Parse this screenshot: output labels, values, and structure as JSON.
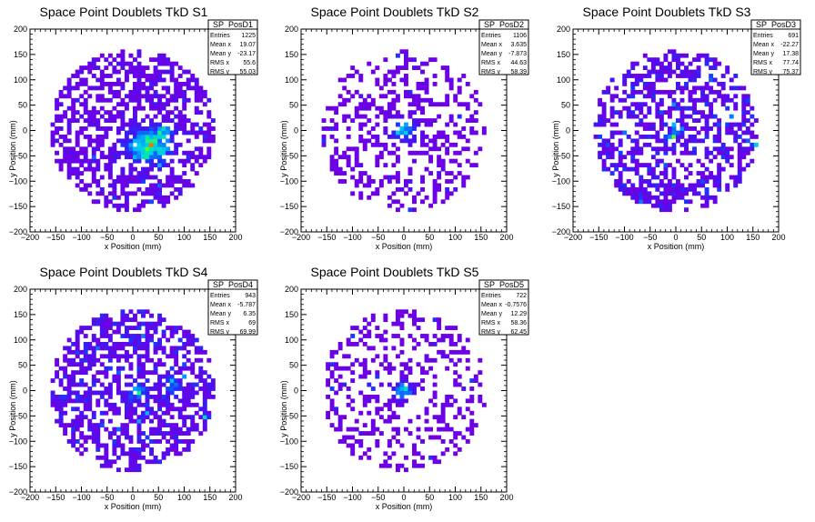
{
  "chart_data": [
    {
      "type": "heatmap",
      "title": "Space Point Doublets TkD S1",
      "xlabel": "x Position (mm)",
      "ylabel": "y Position (mm)",
      "xlim": [
        -200,
        200
      ],
      "ylim": [
        -200,
        200
      ],
      "xticks": [
        "−200",
        "−150",
        "−100",
        "−50",
        "0",
        "50",
        "100",
        "150",
        "200"
      ],
      "yticks": [
        "200",
        "150",
        "100",
        "50",
        "0",
        "−50",
        "−100",
        "−150",
        "−200"
      ],
      "stats": {
        "name": "SP_PosD1",
        "rows": [
          {
            "label": "Entries",
            "value": "1225"
          },
          {
            "label": "Mean x",
            "value": "19.07"
          },
          {
            "label": "Mean y",
            "value": "-23.17"
          },
          {
            "label": "RMS x",
            "value": "55.6"
          },
          {
            "label": "RMS y",
            "value": "55.03"
          }
        ]
      },
      "hotspots": [
        {
          "x": 30,
          "y": -30,
          "sx": 30,
          "sy": 22,
          "w": 1.0
        },
        {
          "x": 60,
          "y": 0,
          "sx": 12,
          "sy": 10,
          "w": 0.5
        }
      ],
      "occupancy": 0.55,
      "bg_intensity": 0.12,
      "peak_intensity": 0.8,
      "seed": 11
    },
    {
      "type": "heatmap",
      "title": "Space Point Doublets TkD S2",
      "xlabel": "x Position (mm)",
      "ylabel": "y Position (mm)",
      "xlim": [
        -200,
        200
      ],
      "ylim": [
        -200,
        200
      ],
      "xticks": [
        "−200",
        "−150",
        "−100",
        "−50",
        "0",
        "50",
        "100",
        "150",
        "200"
      ],
      "yticks": [
        "200",
        "150",
        "100",
        "50",
        "0",
        "−50",
        "−100",
        "−150",
        "−200"
      ],
      "stats": {
        "name": "SP_PosD2",
        "rows": [
          {
            "label": "Entries",
            "value": "1106"
          },
          {
            "label": "Mean x",
            "value": "3.635"
          },
          {
            "label": "Mean y",
            "value": "-7.873"
          },
          {
            "label": "RMS x",
            "value": "44.63"
          },
          {
            "label": "RMS y",
            "value": "58.39"
          }
        ]
      },
      "hotspots": [
        {
          "x": 0,
          "y": 0,
          "sx": 18,
          "sy": 15,
          "w": 1.0
        }
      ],
      "occupancy": 0.3,
      "bg_intensity": 0.02,
      "peak_intensity": 0.65,
      "seed": 23
    },
    {
      "type": "heatmap",
      "title": "Space Point Doublets TkD S3",
      "xlabel": "x Position (mm)",
      "ylabel": "y Position (mm)",
      "xlim": [
        -200,
        200
      ],
      "ylim": [
        -200,
        200
      ],
      "xticks": [
        "−200",
        "−150",
        "−100",
        "−50",
        "0",
        "50",
        "100",
        "150",
        "200"
      ],
      "yticks": [
        "200",
        "150",
        "100",
        "50",
        "0",
        "−50",
        "−100",
        "−150",
        "−200"
      ],
      "stats": {
        "name": "SP_PosD3",
        "rows": [
          {
            "label": "Entries",
            "value": "691"
          },
          {
            "label": "Mean x",
            "value": "-22.27"
          },
          {
            "label": "Mean y",
            "value": "17.38"
          },
          {
            "label": "RMS x",
            "value": "77.74"
          },
          {
            "label": "RMS y",
            "value": "75.37"
          }
        ]
      },
      "hotspots": [
        {
          "x": 0,
          "y": 0,
          "sx": 10,
          "sy": 10,
          "w": 0.6
        }
      ],
      "occupancy": 0.5,
      "bg_intensity": 0.25,
      "peak_intensity": 0.7,
      "seed": 37
    },
    {
      "type": "heatmap",
      "title": "Space Point Doublets TkD S4",
      "xlabel": "x Position (mm)",
      "ylabel": "y Position (mm)",
      "xlim": [
        -200,
        200
      ],
      "ylim": [
        -200,
        200
      ],
      "xticks": [
        "−200",
        "−150",
        "−100",
        "−50",
        "0",
        "50",
        "100",
        "150",
        "200"
      ],
      "yticks": [
        "200",
        "150",
        "100",
        "50",
        "0",
        "−50",
        "−100",
        "−150",
        "−200"
      ],
      "stats": {
        "name": "SP_PosD4",
        "rows": [
          {
            "label": "Entries",
            "value": "943"
          },
          {
            "label": "Mean x",
            "value": "-5.787"
          },
          {
            "label": "Mean y",
            "value": "6.35"
          },
          {
            "label": "RMS x",
            "value": "69"
          },
          {
            "label": "RMS y",
            "value": "69.99"
          }
        ]
      },
      "hotspots": [
        {
          "x": 10,
          "y": 0,
          "sx": 12,
          "sy": 14,
          "w": 0.6
        },
        {
          "x": 75,
          "y": 10,
          "sx": 10,
          "sy": 14,
          "w": 0.6
        }
      ],
      "occupancy": 0.55,
      "bg_intensity": 0.22,
      "peak_intensity": 0.7,
      "seed": 51
    },
    {
      "type": "heatmap",
      "title": "Space Point Doublets TkD S5",
      "xlabel": "x Position (mm)",
      "ylabel": "y Position (mm)",
      "xlim": [
        -200,
        200
      ],
      "ylim": [
        -200,
        200
      ],
      "xticks": [
        "−200",
        "−150",
        "−100",
        "−50",
        "0",
        "50",
        "100",
        "150",
        "200"
      ],
      "yticks": [
        "200",
        "150",
        "100",
        "50",
        "0",
        "−50",
        "−100",
        "−150",
        "−200"
      ],
      "stats": {
        "name": "SP_PosD5",
        "rows": [
          {
            "label": "Entries",
            "value": "722"
          },
          {
            "label": "Mean x",
            "value": "-0.7576"
          },
          {
            "label": "Mean y",
            "value": "12.29"
          },
          {
            "label": "RMS x",
            "value": "58.36"
          },
          {
            "label": "RMS y",
            "value": "62.45"
          }
        ]
      },
      "hotspots": [
        {
          "x": 0,
          "y": 0,
          "sx": 14,
          "sy": 12,
          "w": 1.0
        }
      ],
      "occupancy": 0.3,
      "bg_intensity": 0.02,
      "peak_intensity": 0.65,
      "seed": 67
    }
  ]
}
